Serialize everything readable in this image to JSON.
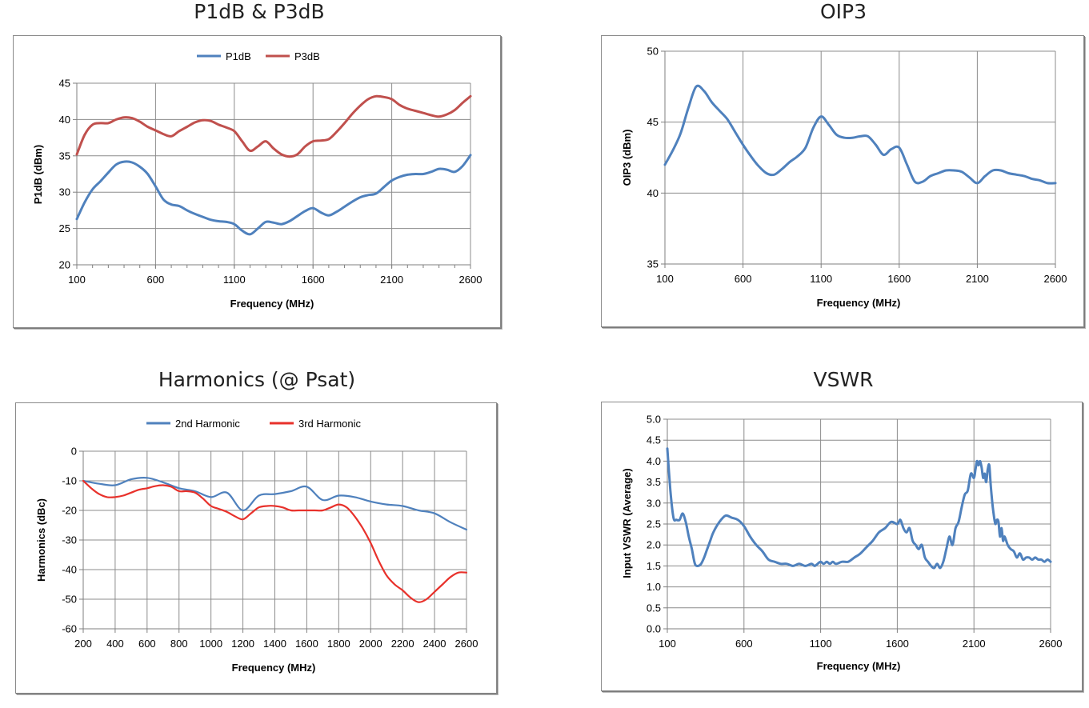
{
  "chart_data": [
    {
      "id": "p1db",
      "type": "line",
      "title": "P1dB & P3dB",
      "xlabel": "Frequency (MHz)",
      "ylabel": "P1dB (dBm)",
      "xlim": [
        100,
        2600
      ],
      "ylim": [
        20,
        45
      ],
      "xticks": [
        100,
        600,
        1100,
        1600,
        2100,
        2600
      ],
      "yticks": [
        20,
        25,
        30,
        35,
        40,
        45
      ],
      "minor_x": 100,
      "legend": "top-center",
      "series": [
        {
          "name": "P1dB",
          "color": "#4f81bd",
          "x": [
            100,
            150,
            200,
            250,
            300,
            350,
            400,
            450,
            500,
            550,
            600,
            650,
            700,
            750,
            800,
            850,
            900,
            950,
            1000,
            1050,
            1100,
            1150,
            1200,
            1250,
            1300,
            1350,
            1400,
            1450,
            1500,
            1550,
            1600,
            1650,
            1700,
            1750,
            1800,
            1850,
            1900,
            1950,
            2000,
            2050,
            2100,
            2150,
            2200,
            2250,
            2300,
            2350,
            2400,
            2450,
            2500,
            2550,
            2600
          ],
          "y": [
            26.3,
            28.6,
            30.4,
            31.5,
            32.7,
            33.8,
            34.2,
            34.1,
            33.5,
            32.5,
            30.8,
            29.0,
            28.3,
            28.1,
            27.5,
            27.0,
            26.6,
            26.2,
            26.0,
            25.9,
            25.6,
            24.7,
            24.2,
            25.0,
            25.9,
            25.8,
            25.6,
            26.0,
            26.7,
            27.4,
            27.8,
            27.2,
            26.8,
            27.3,
            28.0,
            28.7,
            29.3,
            29.6,
            29.8,
            30.7,
            31.6,
            32.1,
            32.4,
            32.5,
            32.5,
            32.8,
            33.2,
            33.1,
            32.8,
            33.6,
            35.1
          ]
        },
        {
          "name": "P3dB",
          "color": "#c0504d",
          "x": [
            100,
            150,
            200,
            250,
            300,
            350,
            400,
            450,
            500,
            550,
            600,
            650,
            700,
            750,
            800,
            850,
            900,
            950,
            1000,
            1050,
            1100,
            1150,
            1200,
            1250,
            1300,
            1350,
            1400,
            1450,
            1500,
            1550,
            1600,
            1650,
            1700,
            1750,
            1800,
            1850,
            1900,
            1950,
            2000,
            2050,
            2100,
            2150,
            2200,
            2250,
            2300,
            2350,
            2400,
            2450,
            2500,
            2550,
            2600
          ],
          "y": [
            35.2,
            37.9,
            39.3,
            39.5,
            39.5,
            40.0,
            40.3,
            40.2,
            39.7,
            39.0,
            38.5,
            38.0,
            37.7,
            38.4,
            39.0,
            39.6,
            39.9,
            39.8,
            39.3,
            38.9,
            38.4,
            37.0,
            35.7,
            36.3,
            37.0,
            36.0,
            35.2,
            34.9,
            35.2,
            36.3,
            37.0,
            37.1,
            37.3,
            38.3,
            39.5,
            40.8,
            41.9,
            42.8,
            43.2,
            43.1,
            42.8,
            42.0,
            41.5,
            41.2,
            40.9,
            40.6,
            40.4,
            40.7,
            41.3,
            42.3,
            43.2
          ]
        }
      ]
    },
    {
      "id": "oip3",
      "type": "line",
      "title": "OIP3",
      "xlabel": "Frequency (MHz)",
      "ylabel": "OIP3 (dBm)",
      "xlim": [
        100,
        2600
      ],
      "ylim": [
        35,
        50
      ],
      "xticks": [
        100,
        600,
        1100,
        1600,
        2100,
        2600
      ],
      "yticks": [
        35,
        40,
        45,
        50
      ],
      "minor_x": 0,
      "legend": "none",
      "series": [
        {
          "name": "OIP3",
          "color": "#4f81bd",
          "x": [
            100,
            150,
            200,
            250,
            300,
            350,
            400,
            450,
            500,
            550,
            600,
            650,
            700,
            750,
            800,
            850,
            900,
            950,
            1000,
            1050,
            1100,
            1150,
            1200,
            1250,
            1300,
            1350,
            1400,
            1450,
            1500,
            1550,
            1600,
            1650,
            1700,
            1750,
            1800,
            1850,
            1900,
            1950,
            2000,
            2050,
            2100,
            2150,
            2200,
            2250,
            2300,
            2350,
            2400,
            2450,
            2500,
            2550,
            2600
          ],
          "y": [
            42.0,
            43.0,
            44.2,
            46.0,
            47.5,
            47.2,
            46.4,
            45.8,
            45.2,
            44.3,
            43.4,
            42.6,
            41.9,
            41.4,
            41.3,
            41.7,
            42.2,
            42.6,
            43.2,
            44.6,
            45.4,
            44.8,
            44.1,
            43.9,
            43.9,
            44.0,
            44.0,
            43.4,
            42.7,
            43.1,
            43.2,
            42.0,
            40.8,
            40.8,
            41.2,
            41.4,
            41.6,
            41.6,
            41.5,
            41.1,
            40.7,
            41.2,
            41.6,
            41.6,
            41.4,
            41.3,
            41.2,
            41.0,
            40.9,
            40.7,
            40.7
          ]
        }
      ]
    },
    {
      "id": "harmonics",
      "type": "line",
      "title": "Harmonics (@ Psat)",
      "xlabel": "Frequency (MHz)",
      "ylabel": "Harmonics (dBc)",
      "xlim": [
        200,
        2600
      ],
      "ylim": [
        -60,
        0
      ],
      "xticks": [
        200,
        400,
        600,
        800,
        1000,
        1200,
        1400,
        1600,
        1800,
        2000,
        2200,
        2400,
        2600
      ],
      "yticks": [
        -60,
        -50,
        -40,
        -30,
        -20,
        -10,
        0
      ],
      "minor_x": 0,
      "legend": "top-center",
      "series": [
        {
          "name": "2nd Harmonic",
          "color": "#4f81bd",
          "x": [
            200,
            300,
            400,
            500,
            600,
            700,
            800,
            900,
            1000,
            1100,
            1200,
            1300,
            1400,
            1500,
            1600,
            1700,
            1800,
            1900,
            2000,
            2100,
            2200,
            2300,
            2400,
            2500,
            2600
          ],
          "y": [
            -10,
            -11,
            -11.5,
            -9.5,
            -9,
            -10.5,
            -12.5,
            -13.5,
            -15.5,
            -14,
            -20,
            -15,
            -14.5,
            -13.5,
            -12,
            -16.5,
            -15,
            -15.5,
            -17,
            -18,
            -18.5,
            -20,
            -21,
            -24,
            -26.5
          ]
        },
        {
          "name": "3rd Harmonic",
          "color": "#e8312b",
          "x": [
            200,
            250,
            300,
            350,
            400,
            450,
            500,
            550,
            600,
            650,
            700,
            750,
            800,
            850,
            900,
            950,
            1000,
            1050,
            1100,
            1150,
            1200,
            1250,
            1300,
            1350,
            1400,
            1450,
            1500,
            1550,
            1600,
            1650,
            1700,
            1750,
            1800,
            1850,
            1900,
            1950,
            2000,
            2050,
            2100,
            2150,
            2200,
            2250,
            2300,
            2350,
            2400,
            2450,
            2500,
            2550,
            2600
          ],
          "y": [
            -10,
            -12.5,
            -14.5,
            -15.5,
            -15.5,
            -15,
            -14,
            -13,
            -12.5,
            -11.8,
            -11.5,
            -12,
            -13.5,
            -13.5,
            -14,
            -16,
            -18.5,
            -19.5,
            -20.5,
            -22,
            -23,
            -21,
            -19,
            -18.5,
            -18.5,
            -19,
            -20,
            -20,
            -20,
            -20,
            -20,
            -19,
            -18,
            -19,
            -22,
            -26,
            -31,
            -37,
            -42,
            -45,
            -47,
            -49.5,
            -51,
            -50,
            -47.5,
            -45,
            -42.5,
            -41,
            -41
          ]
        }
      ]
    },
    {
      "id": "vswr",
      "type": "line",
      "title": "VSWR",
      "xlabel": "Frequency (MHz)",
      "ylabel": "Input VSWR (Average)",
      "xlim": [
        100,
        2600
      ],
      "ylim": [
        0,
        5
      ],
      "xticks": [
        100,
        600,
        1100,
        1600,
        2100,
        2600
      ],
      "yticks": [
        0.0,
        0.5,
        1.0,
        1.5,
        2.0,
        2.5,
        3.0,
        3.5,
        4.0,
        4.5,
        5.0
      ],
      "ytick_labels": [
        "0.0",
        "0.5",
        "1.0",
        "1.5",
        "2.0",
        "2.5",
        "3.0",
        "3.5",
        "4.0",
        "4.5",
        "5.0"
      ],
      "minor_x": 0,
      "legend": "none",
      "series": [
        {
          "name": "Input VSWR",
          "color": "#4f81bd",
          "x": [
            100,
            120,
            140,
            160,
            180,
            200,
            220,
            240,
            260,
            280,
            300,
            320,
            340,
            360,
            380,
            400,
            440,
            480,
            520,
            560,
            600,
            640,
            680,
            720,
            760,
            800,
            840,
            880,
            920,
            960,
            1000,
            1040,
            1060,
            1080,
            1100,
            1120,
            1140,
            1160,
            1180,
            1200,
            1240,
            1280,
            1320,
            1360,
            1400,
            1440,
            1480,
            1520,
            1560,
            1600,
            1620,
            1640,
            1660,
            1680,
            1700,
            1720,
            1740,
            1760,
            1780,
            1800,
            1820,
            1840,
            1860,
            1880,
            1900,
            1920,
            1940,
            1960,
            1980,
            2000,
            2020,
            2040,
            2060,
            2080,
            2100,
            2110,
            2120,
            2130,
            2140,
            2150,
            2160,
            2170,
            2180,
            2190,
            2200,
            2210,
            2220,
            2230,
            2240,
            2250,
            2260,
            2270,
            2280,
            2290,
            2300,
            2320,
            2340,
            2360,
            2380,
            2400,
            2420,
            2440,
            2460,
            2480,
            2500,
            2520,
            2540,
            2560,
            2580,
            2600
          ],
          "y": [
            4.3,
            3.3,
            2.65,
            2.6,
            2.6,
            2.75,
            2.55,
            2.2,
            1.9,
            1.55,
            1.5,
            1.55,
            1.7,
            1.9,
            2.1,
            2.3,
            2.55,
            2.7,
            2.65,
            2.6,
            2.45,
            2.2,
            2.0,
            1.85,
            1.65,
            1.6,
            1.55,
            1.55,
            1.5,
            1.55,
            1.5,
            1.55,
            1.5,
            1.55,
            1.6,
            1.55,
            1.6,
            1.55,
            1.6,
            1.55,
            1.6,
            1.6,
            1.7,
            1.8,
            1.95,
            2.1,
            2.3,
            2.4,
            2.55,
            2.5,
            2.6,
            2.4,
            2.3,
            2.4,
            2.1,
            2.0,
            1.9,
            2.0,
            1.7,
            1.6,
            1.5,
            1.45,
            1.55,
            1.45,
            1.6,
            1.9,
            2.2,
            2.0,
            2.4,
            2.55,
            2.9,
            3.2,
            3.3,
            3.7,
            3.6,
            3.8,
            4.0,
            3.9,
            4.0,
            3.85,
            3.6,
            3.7,
            3.5,
            3.8,
            3.9,
            3.4,
            3.0,
            2.7,
            2.5,
            2.6,
            2.55,
            2.2,
            2.4,
            2.1,
            2.2,
            2.0,
            1.9,
            1.85,
            1.7,
            1.8,
            1.65,
            1.7,
            1.7,
            1.65,
            1.7,
            1.65,
            1.65,
            1.6,
            1.65,
            1.6
          ]
        }
      ]
    }
  ]
}
